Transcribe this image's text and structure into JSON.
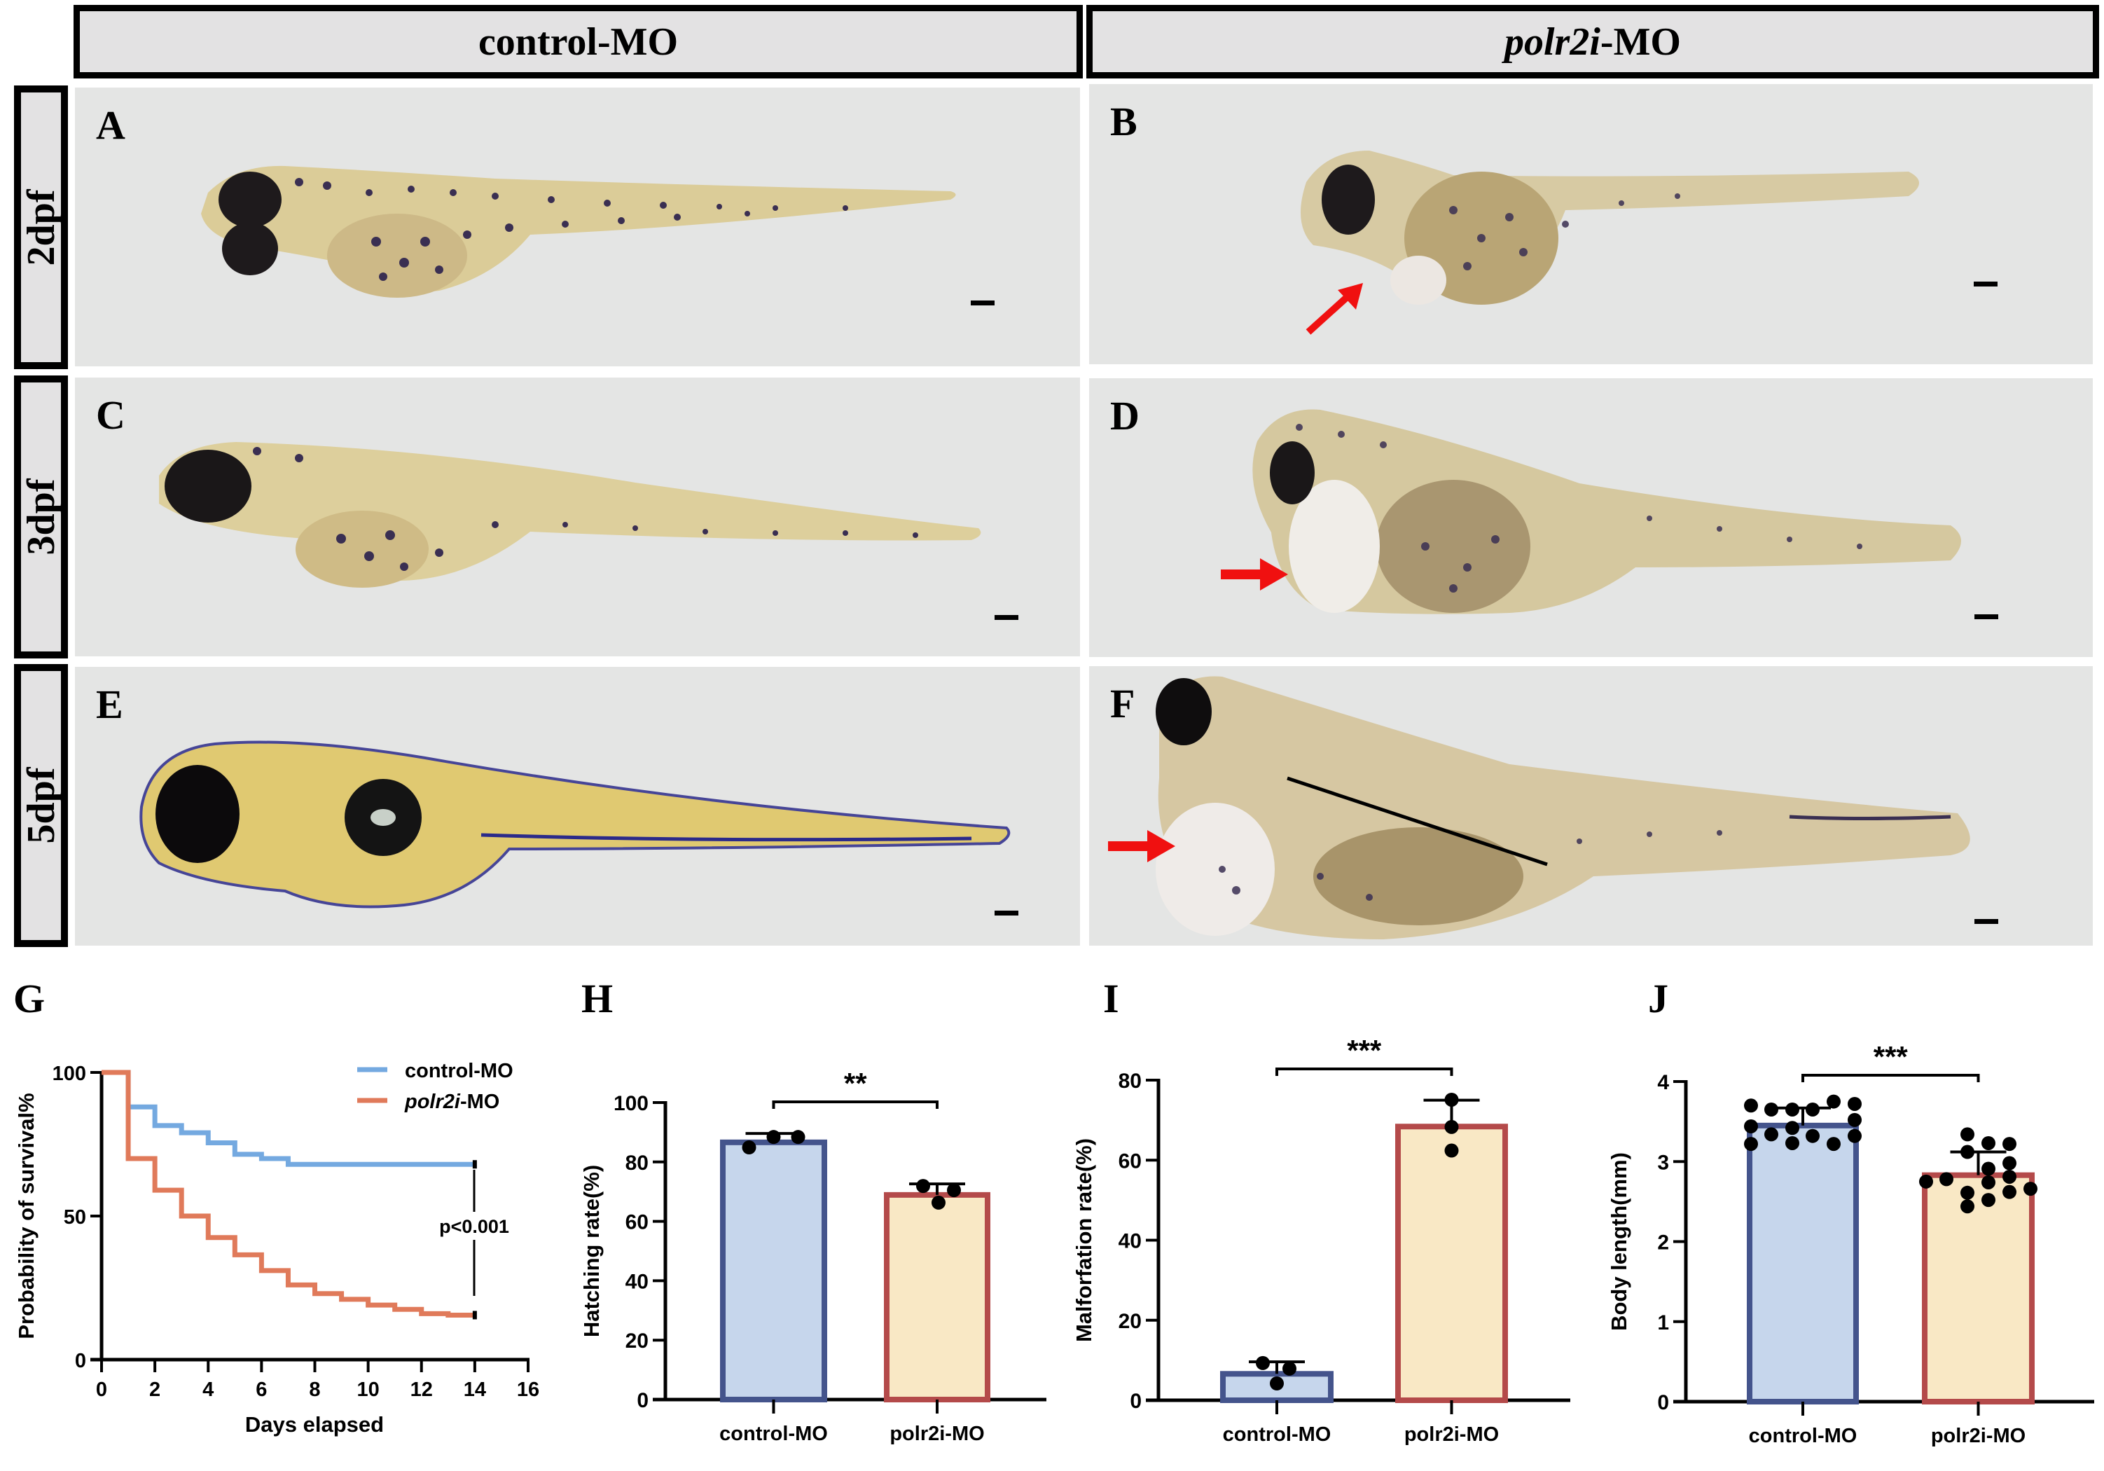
{
  "figure": {
    "column_headers": [
      {
        "text": "control-MO",
        "italic_part": ""
      },
      {
        "text": "-MO",
        "italic_part": "polr2i"
      }
    ],
    "row_labels": [
      "2dpf",
      "3dpf",
      "5dpf"
    ],
    "panels": [
      {
        "letter": "A",
        "group": "control-MO",
        "stage": "2dpf",
        "arrow": false
      },
      {
        "letter": "B",
        "group": "polr2i-MO",
        "stage": "2dpf",
        "arrow": true
      },
      {
        "letter": "C",
        "group": "control-MO",
        "stage": "3dpf",
        "arrow": false
      },
      {
        "letter": "D",
        "group": "polr2i-MO",
        "stage": "3dpf",
        "arrow": true
      },
      {
        "letter": "E",
        "group": "control-MO",
        "stage": "5dpf",
        "arrow": false
      },
      {
        "letter": "F",
        "group": "polr2i-MO",
        "stage": "5dpf",
        "arrow": true
      }
    ],
    "colors": {
      "panel_bg": "#e4e5e4",
      "header_bg": "#e3e2e3",
      "arrow": "#f01010",
      "control_line": "#74a9e0",
      "polr2i_line": "#e07a5a",
      "control_fill": "#c6d6ec",
      "control_border": "#44548c",
      "polr2i_fill": "#f9e8c5",
      "polr2i_border": "#b44a4a"
    }
  },
  "chart_data": [
    {
      "id": "G",
      "letter": "G",
      "type": "line",
      "subtype": "kaplan-meier step",
      "title": "",
      "xlabel": "Days elapsed",
      "ylabel": "Probability of survival%",
      "xlim": [
        0,
        16
      ],
      "ylim": [
        0,
        100
      ],
      "xticks": [
        0,
        2,
        4,
        6,
        8,
        10,
        12,
        14,
        16
      ],
      "yticks": [
        0,
        50,
        100
      ],
      "legend_position": "top-right",
      "annotation": "p<0.001",
      "series": [
        {
          "name": "control-MO",
          "italic_part": "",
          "color": "#74a9e0",
          "x": [
            0,
            1,
            2,
            3,
            4,
            5,
            6,
            7,
            14
          ],
          "y": [
            100,
            88,
            81.5,
            79,
            75.5,
            71.5,
            70,
            68,
            68
          ]
        },
        {
          "name": "-MO",
          "italic_part": "polr2i",
          "color": "#e07a5a",
          "x": [
            0,
            1,
            2,
            3,
            4,
            5,
            6,
            7,
            8,
            9,
            10,
            11,
            12,
            13,
            14
          ],
          "y": [
            100,
            70,
            59,
            50,
            42.5,
            36.5,
            31,
            26,
            23,
            21,
            19,
            17.5,
            16,
            15.5,
            15.5
          ]
        }
      ]
    },
    {
      "id": "H",
      "letter": "H",
      "type": "bar",
      "ylabel": "Hatching rate(%)",
      "categories": [
        "control-MO",
        "polr2i-MO"
      ],
      "values": [
        86.6,
        68.9
      ],
      "sd_upper": [
        89.6,
        72.6
      ],
      "points": [
        [
          84.9,
          88.4,
          88.4
        ],
        [
          71.9,
          70.5,
          66.3
        ]
      ],
      "ylim": [
        0,
        100
      ],
      "yticks": [
        0,
        20,
        40,
        60,
        80,
        100
      ],
      "significance": "**"
    },
    {
      "id": "I",
      "letter": "I",
      "type": "bar",
      "ylabel": "Malforfation rate(%)",
      "categories": [
        "control-MO",
        "polr2i-MO"
      ],
      "values": [
        6.6,
        68.4
      ],
      "sd_upper": [
        9.6,
        75.0
      ],
      "points": [
        [
          9.3,
          7.9,
          4.2
        ],
        [
          75.1,
          68.3,
          62.4
        ]
      ],
      "ylim": [
        0,
        80
      ],
      "yticks": [
        0,
        20,
        40,
        60,
        80
      ],
      "significance": "***"
    },
    {
      "id": "J",
      "letter": "J",
      "type": "bar",
      "ylabel": "Body length(mm)",
      "categories": [
        "control-MO",
        "polr2i-MO"
      ],
      "values": [
        3.45,
        2.83
      ],
      "sd_upper": [
        3.67,
        3.12
      ],
      "points": [
        [
          3.7,
          3.44,
          3.22,
          3.65,
          3.34,
          3.65,
          3.42,
          3.23,
          3.65,
          3.32,
          3.75,
          3.22,
          3.72,
          3.52,
          3.32
        ],
        [
          2.75,
          2.78,
          3.34,
          3.12,
          2.61,
          2.44,
          3.23,
          2.91,
          2.74,
          2.52,
          3.22,
          2.98,
          2.81,
          2.62,
          2.66
        ]
      ],
      "ylim": [
        0,
        4
      ],
      "yticks": [
        0,
        1,
        2,
        3,
        4
      ],
      "significance": "***"
    }
  ]
}
